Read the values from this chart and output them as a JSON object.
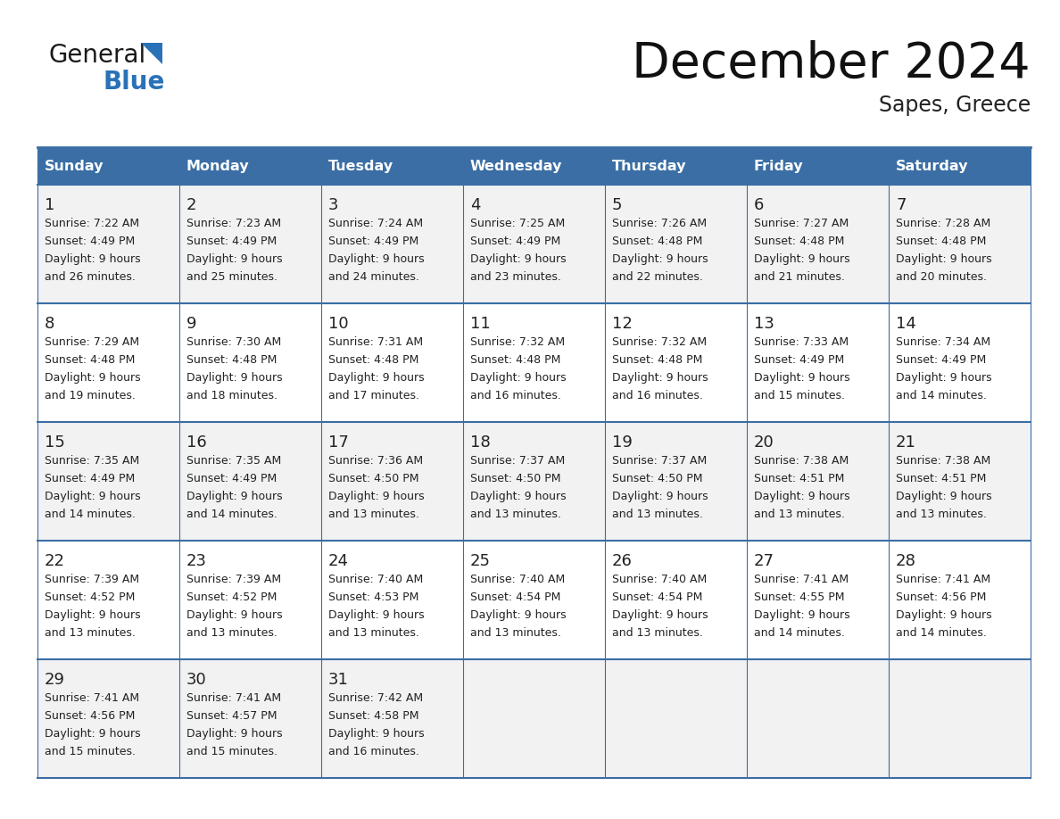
{
  "title": "December 2024",
  "subtitle": "Sapes, Greece",
  "header_bg_color": "#3a6ea5",
  "header_text_color": "#ffffff",
  "cell_bg_light": "#f2f2f2",
  "cell_bg_white": "#ffffff",
  "grid_line_color": "#3a6ea5",
  "day_number_color": "#222222",
  "cell_text_color": "#222222",
  "logo_text_color": "#1a1a1a",
  "logo_blue_color": "#2a72b8",
  "logo_triangle_color": "#2a72b8",
  "days_of_week": [
    "Sunday",
    "Monday",
    "Tuesday",
    "Wednesday",
    "Thursday",
    "Friday",
    "Saturday"
  ],
  "weeks": [
    [
      {
        "day": 1,
        "sunrise": "7:22 AM",
        "sunset": "4:49 PM",
        "daylight_hours": 9,
        "daylight_minutes": 26
      },
      {
        "day": 2,
        "sunrise": "7:23 AM",
        "sunset": "4:49 PM",
        "daylight_hours": 9,
        "daylight_minutes": 25
      },
      {
        "day": 3,
        "sunrise": "7:24 AM",
        "sunset": "4:49 PM",
        "daylight_hours": 9,
        "daylight_minutes": 24
      },
      {
        "day": 4,
        "sunrise": "7:25 AM",
        "sunset": "4:49 PM",
        "daylight_hours": 9,
        "daylight_minutes": 23
      },
      {
        "day": 5,
        "sunrise": "7:26 AM",
        "sunset": "4:48 PM",
        "daylight_hours": 9,
        "daylight_minutes": 22
      },
      {
        "day": 6,
        "sunrise": "7:27 AM",
        "sunset": "4:48 PM",
        "daylight_hours": 9,
        "daylight_minutes": 21
      },
      {
        "day": 7,
        "sunrise": "7:28 AM",
        "sunset": "4:48 PM",
        "daylight_hours": 9,
        "daylight_minutes": 20
      }
    ],
    [
      {
        "day": 8,
        "sunrise": "7:29 AM",
        "sunset": "4:48 PM",
        "daylight_hours": 9,
        "daylight_minutes": 19
      },
      {
        "day": 9,
        "sunrise": "7:30 AM",
        "sunset": "4:48 PM",
        "daylight_hours": 9,
        "daylight_minutes": 18
      },
      {
        "day": 10,
        "sunrise": "7:31 AM",
        "sunset": "4:48 PM",
        "daylight_hours": 9,
        "daylight_minutes": 17
      },
      {
        "day": 11,
        "sunrise": "7:32 AM",
        "sunset": "4:48 PM",
        "daylight_hours": 9,
        "daylight_minutes": 16
      },
      {
        "day": 12,
        "sunrise": "7:32 AM",
        "sunset": "4:48 PM",
        "daylight_hours": 9,
        "daylight_minutes": 16
      },
      {
        "day": 13,
        "sunrise": "7:33 AM",
        "sunset": "4:49 PM",
        "daylight_hours": 9,
        "daylight_minutes": 15
      },
      {
        "day": 14,
        "sunrise": "7:34 AM",
        "sunset": "4:49 PM",
        "daylight_hours": 9,
        "daylight_minutes": 14
      }
    ],
    [
      {
        "day": 15,
        "sunrise": "7:35 AM",
        "sunset": "4:49 PM",
        "daylight_hours": 9,
        "daylight_minutes": 14
      },
      {
        "day": 16,
        "sunrise": "7:35 AM",
        "sunset": "4:49 PM",
        "daylight_hours": 9,
        "daylight_minutes": 14
      },
      {
        "day": 17,
        "sunrise": "7:36 AM",
        "sunset": "4:50 PM",
        "daylight_hours": 9,
        "daylight_minutes": 13
      },
      {
        "day": 18,
        "sunrise": "7:37 AM",
        "sunset": "4:50 PM",
        "daylight_hours": 9,
        "daylight_minutes": 13
      },
      {
        "day": 19,
        "sunrise": "7:37 AM",
        "sunset": "4:50 PM",
        "daylight_hours": 9,
        "daylight_minutes": 13
      },
      {
        "day": 20,
        "sunrise": "7:38 AM",
        "sunset": "4:51 PM",
        "daylight_hours": 9,
        "daylight_minutes": 13
      },
      {
        "day": 21,
        "sunrise": "7:38 AM",
        "sunset": "4:51 PM",
        "daylight_hours": 9,
        "daylight_minutes": 13
      }
    ],
    [
      {
        "day": 22,
        "sunrise": "7:39 AM",
        "sunset": "4:52 PM",
        "daylight_hours": 9,
        "daylight_minutes": 13
      },
      {
        "day": 23,
        "sunrise": "7:39 AM",
        "sunset": "4:52 PM",
        "daylight_hours": 9,
        "daylight_minutes": 13
      },
      {
        "day": 24,
        "sunrise": "7:40 AM",
        "sunset": "4:53 PM",
        "daylight_hours": 9,
        "daylight_minutes": 13
      },
      {
        "day": 25,
        "sunrise": "7:40 AM",
        "sunset": "4:54 PM",
        "daylight_hours": 9,
        "daylight_minutes": 13
      },
      {
        "day": 26,
        "sunrise": "7:40 AM",
        "sunset": "4:54 PM",
        "daylight_hours": 9,
        "daylight_minutes": 13
      },
      {
        "day": 27,
        "sunrise": "7:41 AM",
        "sunset": "4:55 PM",
        "daylight_hours": 9,
        "daylight_minutes": 14
      },
      {
        "day": 28,
        "sunrise": "7:41 AM",
        "sunset": "4:56 PM",
        "daylight_hours": 9,
        "daylight_minutes": 14
      }
    ],
    [
      {
        "day": 29,
        "sunrise": "7:41 AM",
        "sunset": "4:56 PM",
        "daylight_hours": 9,
        "daylight_minutes": 15
      },
      {
        "day": 30,
        "sunrise": "7:41 AM",
        "sunset": "4:57 PM",
        "daylight_hours": 9,
        "daylight_minutes": 15
      },
      {
        "day": 31,
        "sunrise": "7:42 AM",
        "sunset": "4:58 PM",
        "daylight_hours": 9,
        "daylight_minutes": 16
      },
      null,
      null,
      null,
      null
    ]
  ]
}
